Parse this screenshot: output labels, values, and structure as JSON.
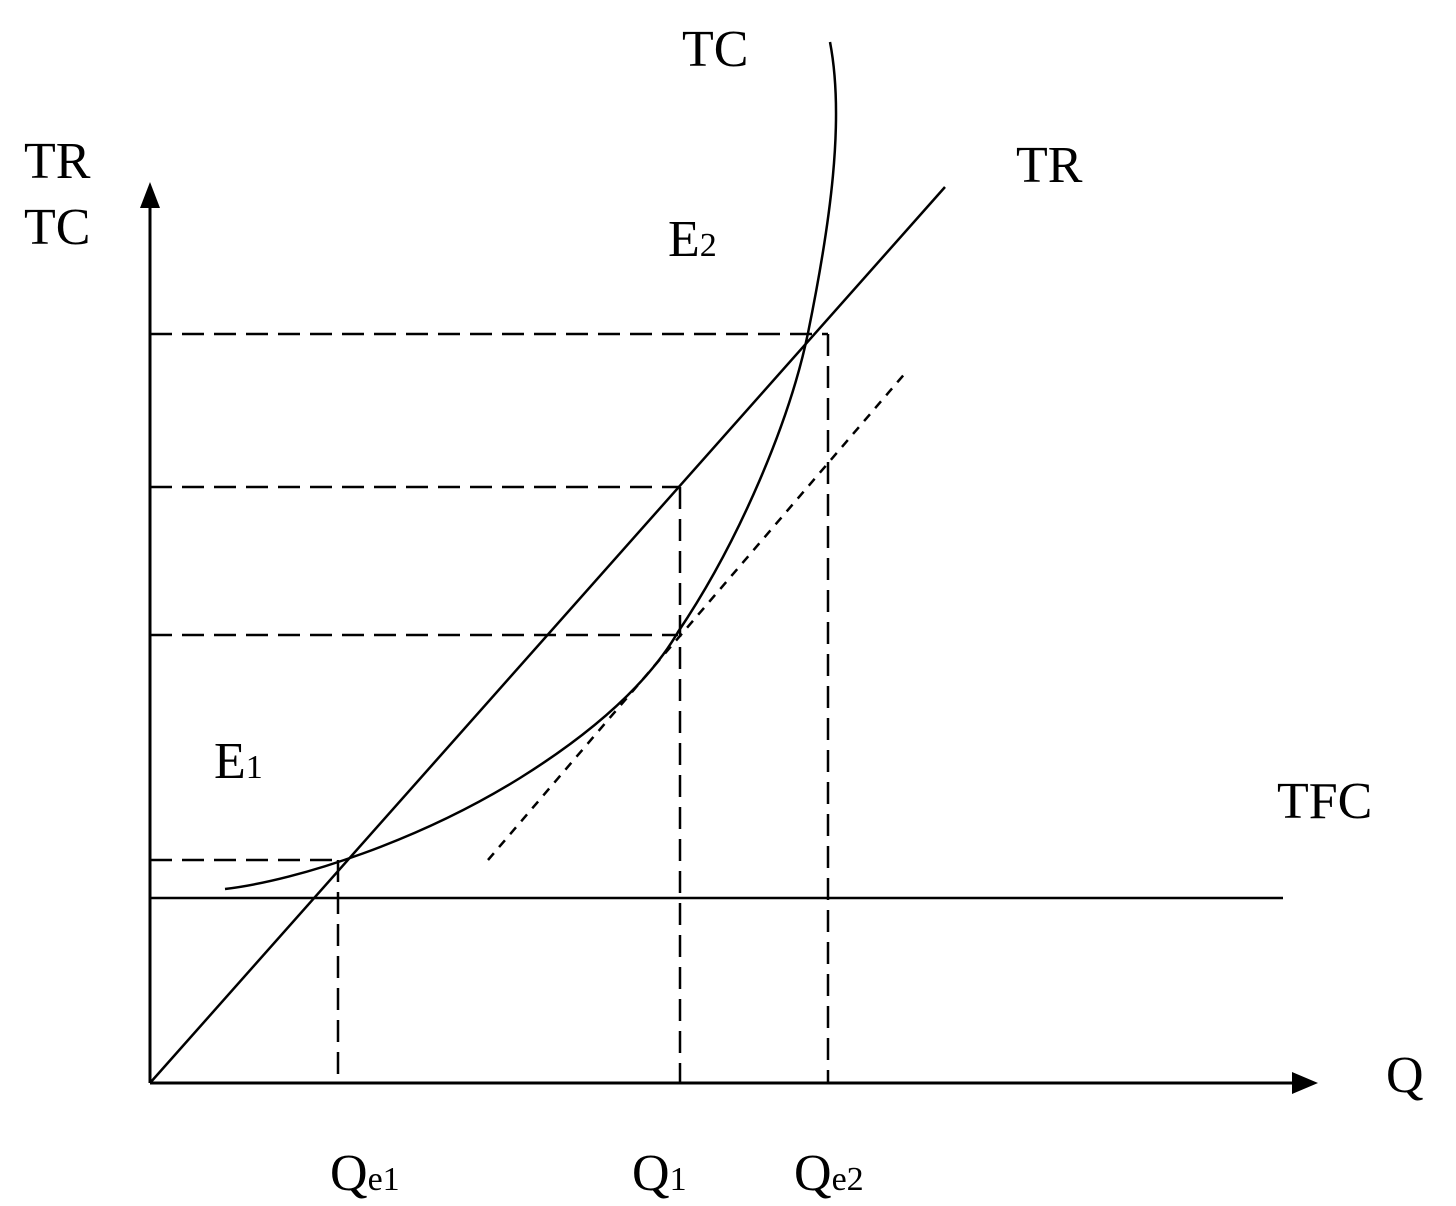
{
  "labels": {
    "y_axis_line1": "TR",
    "y_axis_line2": "TC",
    "x_axis": "Q",
    "tc_curve": "TC",
    "tr_curve": "TR",
    "tfc_curve": "TFC",
    "e1_main": "E",
    "e1_sub": "1",
    "e2_main": "E",
    "e2_sub": "2",
    "qe1_main": "Q",
    "qe1_sub": "e1",
    "q1_main": "Q",
    "q1_sub": "1",
    "qe2_main": "Q",
    "qe2_sub": "e2"
  },
  "colors": {
    "ink": "#000000",
    "background": "#ffffff"
  }
}
